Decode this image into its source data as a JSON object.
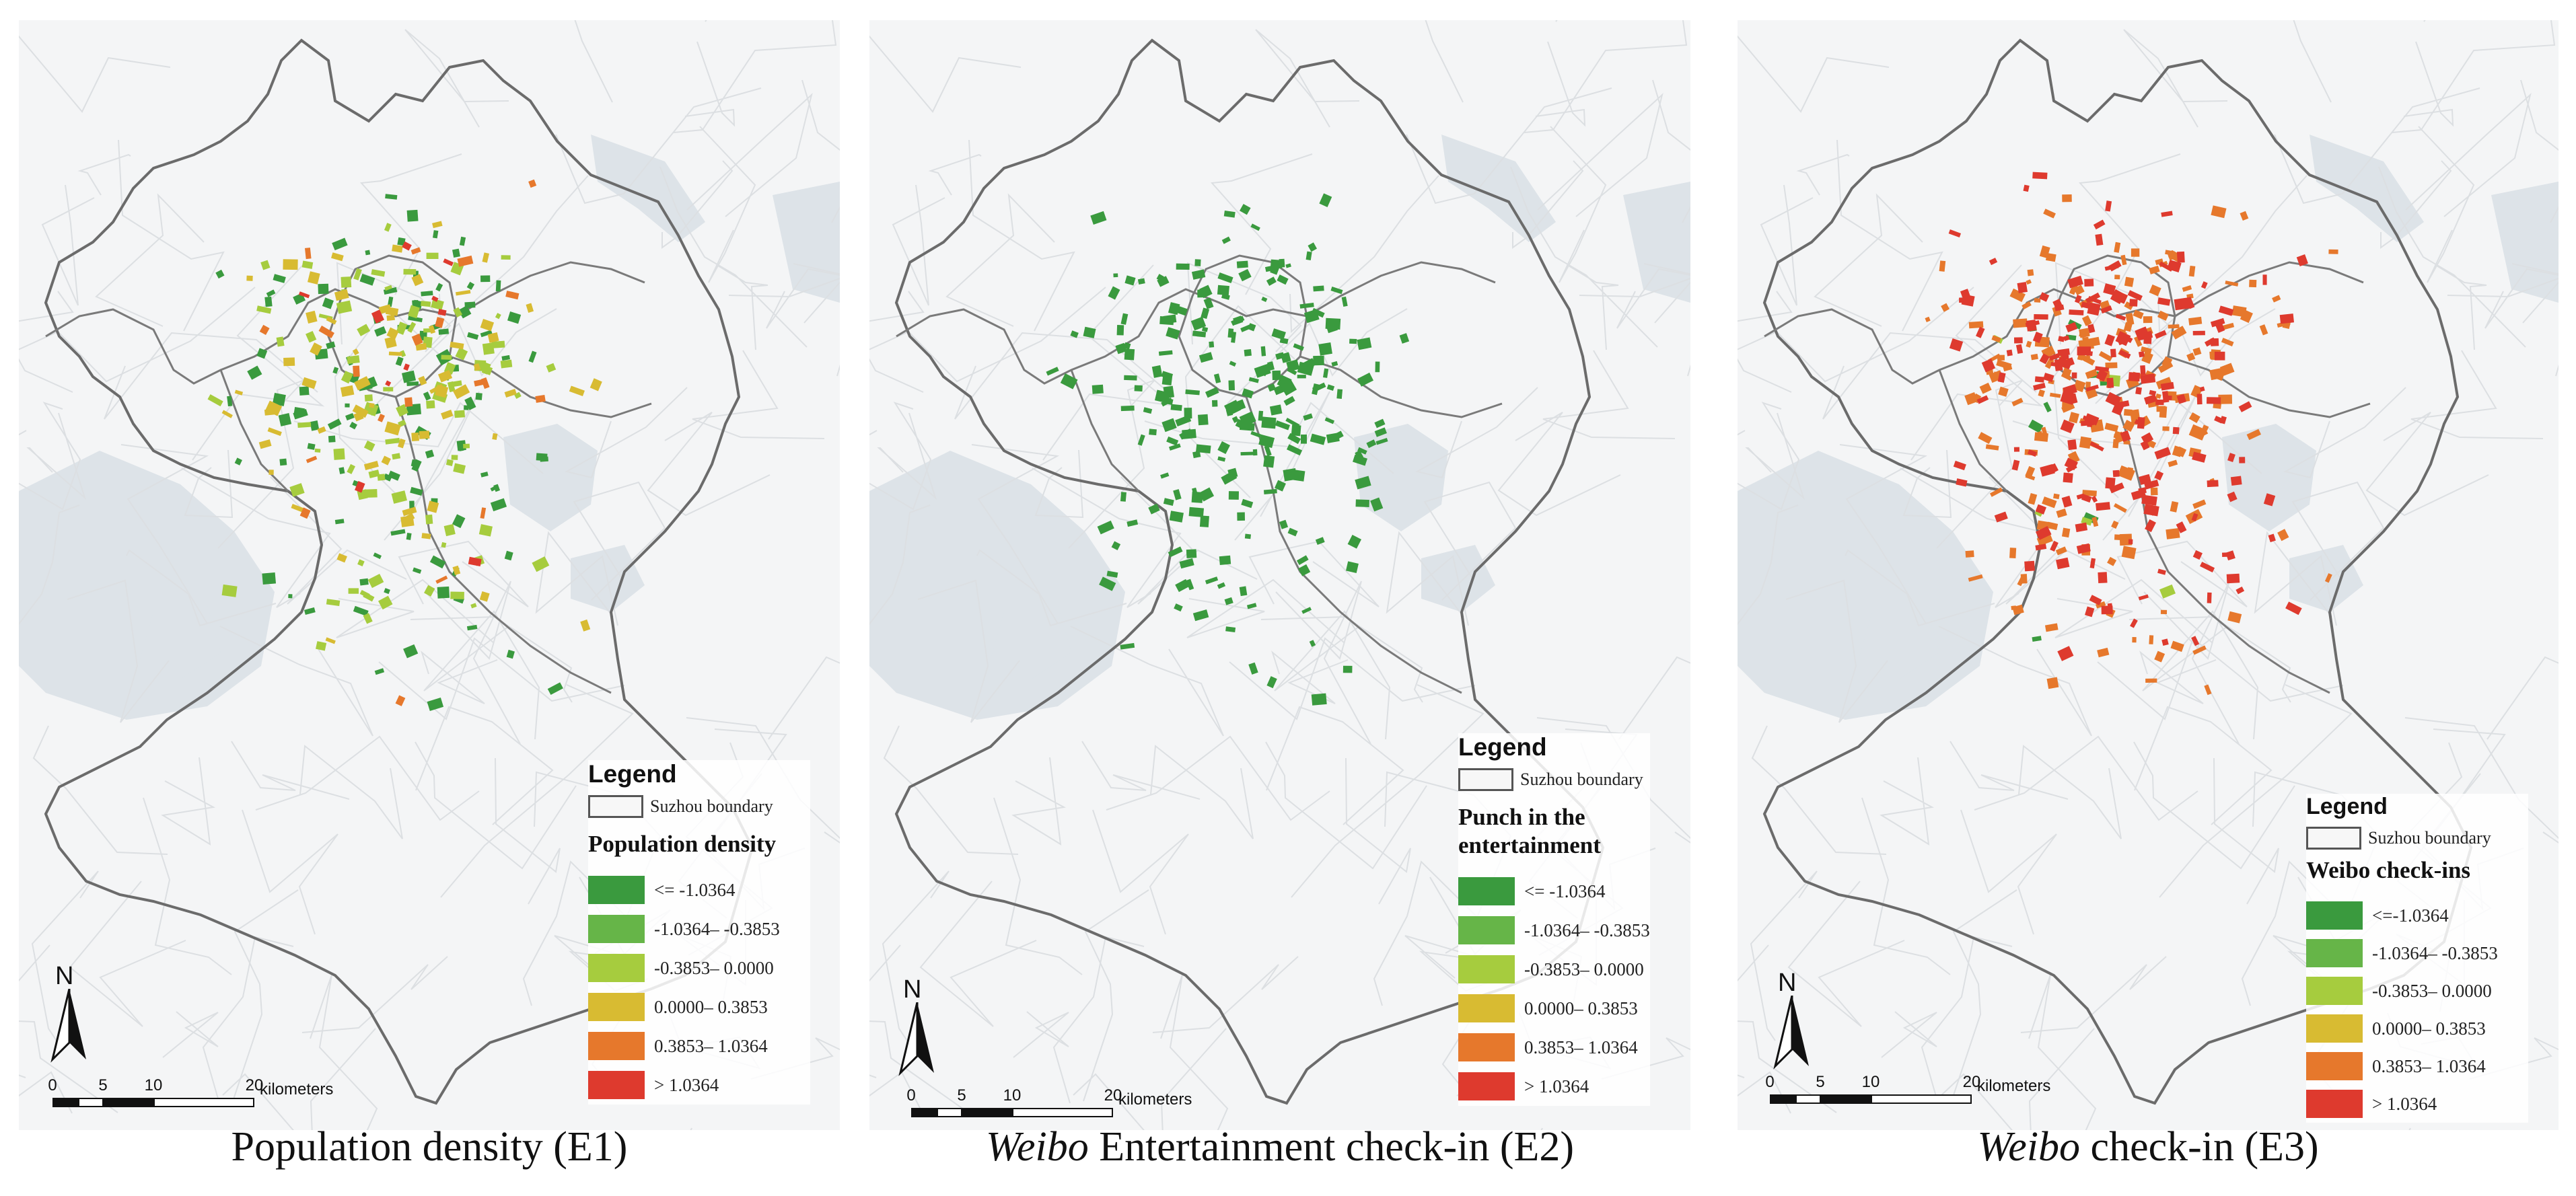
{
  "maps": [
    {
      "id": "e1",
      "caption": {
        "italic": "",
        "rest": "Population density (E1)"
      },
      "legend": {
        "title": "Legend",
        "boundary_label": "Suzhou boundary",
        "subtitle": "Population density",
        "classes": [
          {
            "label": "<= -1.0364",
            "color": "#3a9a3e"
          },
          {
            "label": "-1.0364– -0.3853",
            "color": "#66b548"
          },
          {
            "label": "-0.3853– 0.0000",
            "color": "#a6cc3e"
          },
          {
            "label": "0.0000– 0.3853",
            "color": "#d8bb32"
          },
          {
            "label": "0.3853– 1.0364",
            "color": "#e6782c"
          },
          {
            "label": "> 1.0364",
            "color": "#de3a2e"
          }
        ]
      },
      "north_label": "N",
      "scale": {
        "ticks": [
          "0",
          "5",
          "10",
          "20"
        ],
        "unit": "kilometers"
      },
      "spots": {
        "green": 120,
        "lightgreen": 90,
        "yellow": 70,
        "orange": 20,
        "red": 10
      }
    },
    {
      "id": "e2",
      "caption": {
        "italic": "Weibo",
        "rest": " Entertainment check-in (E2)"
      },
      "legend": {
        "title": "Legend",
        "boundary_label": "Suzhou boundary",
        "subtitle": "Punch in the entertainment",
        "classes": [
          {
            "label": "<= -1.0364",
            "color": "#3a9a3e"
          },
          {
            "label": "-1.0364– -0.3853",
            "color": "#66b548"
          },
          {
            "label": "-0.3853– 0.0000",
            "color": "#a6cc3e"
          },
          {
            "label": "0.0000– 0.3853",
            "color": "#d8bb32"
          },
          {
            "label": "0.3853– 1.0364",
            "color": "#e6782c"
          },
          {
            "label": "> 1.0364",
            "color": "#de3a2e"
          }
        ]
      },
      "north_label": "N",
      "scale": {
        "ticks": [
          "0",
          "5",
          "10",
          "20"
        ],
        "unit": "kilometers"
      },
      "spots": {
        "green": 230,
        "lightgreen": 0,
        "yellow": 0,
        "orange": 0,
        "red": 0
      }
    },
    {
      "id": "e3",
      "caption": {
        "italic": "Weibo",
        "rest": " check-in (E3)"
      },
      "legend": {
        "title": "Legend",
        "boundary_label": "Suzhou boundary",
        "subtitle": "Weibo check-ins",
        "classes": [
          {
            "label": "<=-1.0364",
            "color": "#3a9a3e"
          },
          {
            "label": "-1.0364– -0.3853",
            "color": "#66b548"
          },
          {
            "label": "-0.3853– 0.0000",
            "color": "#a6cc3e"
          },
          {
            "label": "0.0000– 0.3853",
            "color": "#d8bb32"
          },
          {
            "label": "0.3853– 1.0364",
            "color": "#e6782c"
          },
          {
            "label": "> 1.0364",
            "color": "#de3a2e"
          }
        ]
      },
      "north_label": "N",
      "scale": {
        "ticks": [
          "0",
          "5",
          "10",
          "20"
        ],
        "unit": "kilometers"
      },
      "spots": {
        "green": 10,
        "lightgreen": 5,
        "yellow": 0,
        "orange": 220,
        "red": 200
      }
    }
  ]
}
